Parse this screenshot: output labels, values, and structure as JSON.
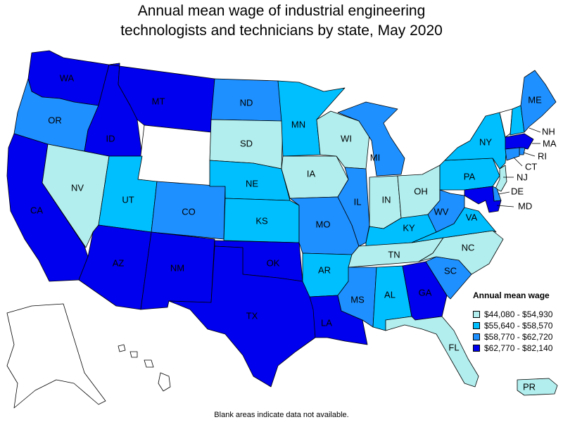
{
  "title_line1": "Annual mean wage of industrial engineering",
  "title_line2": "technologists and technicians by state, May 2020",
  "legend": {
    "title": "Annual mean wage",
    "items": [
      {
        "label": "$44,080 - $54,930",
        "color": "#b2eeee"
      },
      {
        "label": "$55,640 - $58,570",
        "color": "#00bfff"
      },
      {
        "label": "$58,770 - $62,720",
        "color": "#1e90ff"
      },
      {
        "label": "$62,770 - $82,140",
        "color": "#0000ee"
      }
    ]
  },
  "footnote": "Blank areas indicate data not available.",
  "states": {
    "WA": {
      "class": 3
    },
    "OR": {
      "class": 2
    },
    "CA": {
      "class": 3
    },
    "NV": {
      "class": 0
    },
    "ID": {
      "class": 3
    },
    "MT": {
      "class": 3
    },
    "WY": {
      "class": null
    },
    "UT": {
      "class": 1
    },
    "AZ": {
      "class": 3
    },
    "CO": {
      "class": 2
    },
    "NM": {
      "class": 3
    },
    "ND": {
      "class": 2
    },
    "SD": {
      "class": 0
    },
    "NE": {
      "class": 1
    },
    "KS": {
      "class": 1
    },
    "OK": {
      "class": 3
    },
    "TX": {
      "class": 3
    },
    "MN": {
      "class": 1
    },
    "IA": {
      "class": 0
    },
    "MO": {
      "class": 2
    },
    "AR": {
      "class": 1
    },
    "LA": {
      "class": 3
    },
    "WI": {
      "class": 0
    },
    "IL": {
      "class": 2
    },
    "MI": {
      "class": 2
    },
    "IN": {
      "class": 0
    },
    "OH": {
      "class": 0
    },
    "KY": {
      "class": 1
    },
    "TN": {
      "class": 0
    },
    "MS": {
      "class": 2
    },
    "AL": {
      "class": 1
    },
    "GA": {
      "class": 3
    },
    "FL": {
      "class": 0
    },
    "SC": {
      "class": 2
    },
    "NC": {
      "class": 0
    },
    "VA": {
      "class": 1
    },
    "WV": {
      "class": 2
    },
    "PA": {
      "class": 1
    },
    "NY": {
      "class": 1
    },
    "VT": {
      "class": null
    },
    "NH": {
      "class": 1
    },
    "ME": {
      "class": 2
    },
    "MA": {
      "class": 3
    },
    "RI": {
      "class": 2
    },
    "CT": {
      "class": 2
    },
    "NJ": {
      "class": 0
    },
    "DE": {
      "class": 2
    },
    "MD": {
      "class": 3
    },
    "AK": {
      "class": null
    },
    "HI": {
      "class": null
    },
    "PR": {
      "class": 0
    }
  }
}
